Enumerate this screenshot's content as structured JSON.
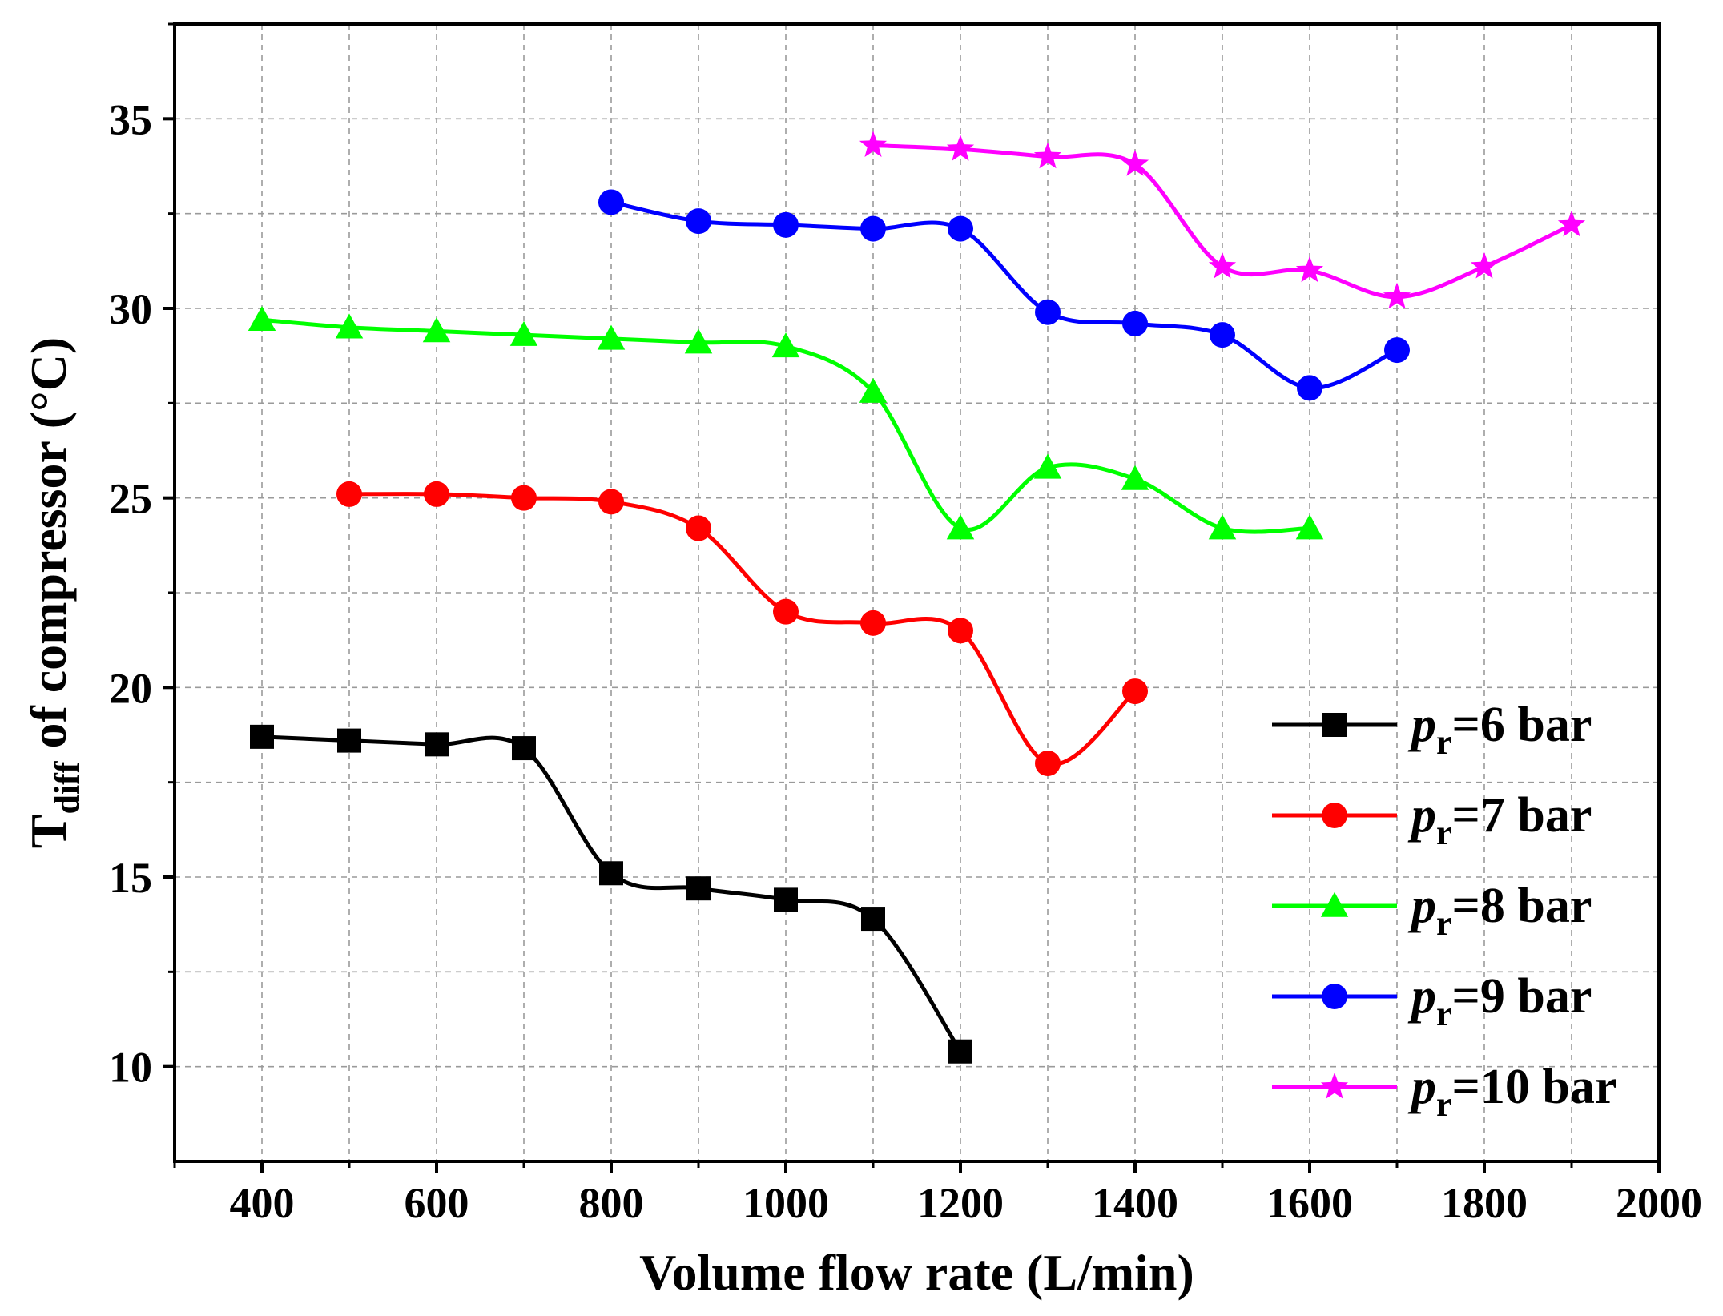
{
  "chart_data": {
    "type": "line",
    "title": "",
    "xlabel": "Volume flow rate (L/min)",
    "ylabel": {
      "main": "T",
      "sub": "diff",
      "rest": "  of compressor (°C)"
    },
    "xlim": [
      300,
      2000
    ],
    "ylim": [
      7.5,
      37.5
    ],
    "x_ticks": [
      400,
      600,
      800,
      1000,
      1200,
      1400,
      1600,
      1800,
      2000
    ],
    "y_ticks": [
      10,
      15,
      20,
      25,
      30,
      35
    ],
    "x_grid": [
      400,
      500,
      600,
      700,
      800,
      900,
      1000,
      1100,
      1200,
      1300,
      1400,
      1500,
      1600,
      1700,
      1800,
      1900
    ],
    "y_grid": [
      10,
      12.5,
      15,
      17.5,
      20,
      22.5,
      25,
      27.5,
      30,
      32.5,
      35
    ],
    "grid": true,
    "legend_position": "bottom-right",
    "series": [
      {
        "name": "pr=6 bar",
        "legend": {
          "p": "p",
          "sub": "r",
          "rest": "=6 bar"
        },
        "color": "#000000",
        "marker": "square",
        "x": [
          400,
          500,
          600,
          700,
          800,
          900,
          1000,
          1100,
          1200
        ],
        "y": [
          18.7,
          18.6,
          18.5,
          18.4,
          15.1,
          14.7,
          14.4,
          13.9,
          10.4
        ]
      },
      {
        "name": "pr=7 bar",
        "legend": {
          "p": "p",
          "sub": "r",
          "rest": "=7 bar"
        },
        "color": "#ff0000",
        "marker": "circle",
        "x": [
          500,
          600,
          700,
          800,
          900,
          1000,
          1100,
          1200,
          1300,
          1400
        ],
        "y": [
          25.1,
          25.1,
          25.0,
          24.9,
          24.2,
          22.0,
          21.7,
          21.5,
          18.0,
          19.9
        ]
      },
      {
        "name": "pr=8 bar",
        "legend": {
          "p": "p",
          "sub": "r",
          "rest": "=8 bar"
        },
        "color": "#00ff00",
        "marker": "triangle",
        "x": [
          400,
          500,
          600,
          700,
          800,
          900,
          1000,
          1100,
          1200,
          1300,
          1400,
          1500,
          1600
        ],
        "y": [
          29.7,
          29.5,
          29.4,
          29.3,
          29.2,
          29.1,
          29.0,
          27.8,
          24.2,
          25.8,
          25.5,
          24.2,
          24.2
        ]
      },
      {
        "name": "pr=9 bar",
        "legend": {
          "p": "p",
          "sub": "r",
          "rest": "=9 bar"
        },
        "color": "#0000ff",
        "marker": "circle",
        "x": [
          800,
          900,
          1000,
          1100,
          1200,
          1300,
          1400,
          1500,
          1600,
          1700
        ],
        "y": [
          32.8,
          32.3,
          32.2,
          32.1,
          32.1,
          29.9,
          29.6,
          29.3,
          27.9,
          28.9
        ]
      },
      {
        "name": "pr=10 bar",
        "legend": {
          "p": "p",
          "sub": "r",
          "rest": "=10 bar"
        },
        "color": "#ff00ff",
        "marker": "star",
        "x": [
          1100,
          1200,
          1300,
          1400,
          1500,
          1600,
          1700,
          1800,
          1900
        ],
        "y": [
          34.3,
          34.2,
          34.0,
          33.8,
          31.1,
          31.0,
          30.3,
          31.1,
          32.2
        ]
      }
    ]
  }
}
